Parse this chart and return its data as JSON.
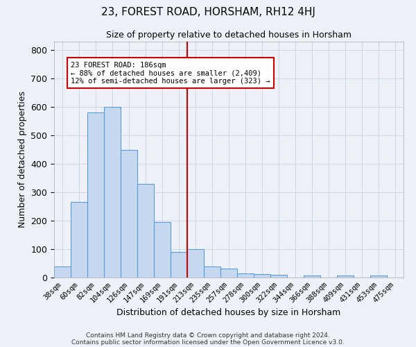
{
  "title": "23, FOREST ROAD, HORSHAM, RH12 4HJ",
  "subtitle": "Size of property relative to detached houses in Horsham",
  "xlabel": "Distribution of detached houses by size in Horsham",
  "ylabel": "Number of detached properties",
  "categories": [
    "38sqm",
    "60sqm",
    "82sqm",
    "104sqm",
    "126sqm",
    "147sqm",
    "169sqm",
    "191sqm",
    "213sqm",
    "235sqm",
    "257sqm",
    "278sqm",
    "300sqm",
    "322sqm",
    "344sqm",
    "366sqm",
    "388sqm",
    "409sqm",
    "431sqm",
    "453sqm",
    "475sqm"
  ],
  "values": [
    38,
    265,
    580,
    600,
    450,
    330,
    195,
    90,
    100,
    38,
    32,
    15,
    12,
    10,
    0,
    8,
    0,
    8,
    0,
    8,
    0
  ],
  "bar_color": "#c5d8f0",
  "bar_edge_color": "#5b9bd5",
  "red_line_x": 7.5,
  "annotation_text": "23 FOREST ROAD: 186sqm\n← 88% of detached houses are smaller (2,409)\n12% of semi-detached houses are larger (323) →",
  "annotation_box_color": "#ffffff",
  "annotation_box_edge_color": "#cc0000",
  "red_line_color": "#cc0000",
  "grid_color": "#d0d8e8",
  "background_color": "#eef2f8",
  "ylim": [
    0,
    830
  ],
  "yticks": [
    0,
    100,
    200,
    300,
    400,
    500,
    600,
    700,
    800
  ],
  "footer_line1": "Contains HM Land Registry data © Crown copyright and database right 2024.",
  "footer_line2": "Contains public sector information licensed under the Open Government Licence v3.0."
}
